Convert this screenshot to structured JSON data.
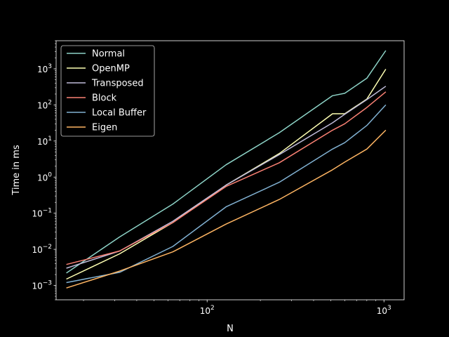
{
  "chart_data": {
    "type": "line",
    "xlabel": "N",
    "ylabel": "Time in ms",
    "xscale": "log",
    "yscale": "log",
    "xlim": [
      14,
      1300
    ],
    "ylim": [
      0.0004,
      6000
    ],
    "grid": false,
    "legend_position": "top-left",
    "x_ticks": [
      {
        "value": 100,
        "base": "10",
        "exp": "2"
      },
      {
        "value": 1000,
        "base": "10",
        "exp": "3"
      }
    ],
    "y_ticks": [
      {
        "value": 0.001,
        "base": "10",
        "exp": "−3"
      },
      {
        "value": 0.01,
        "base": "10",
        "exp": "−2"
      },
      {
        "value": 0.1,
        "base": "10",
        "exp": "−1"
      },
      {
        "value": 1,
        "base": "10",
        "exp": "0"
      },
      {
        "value": 10,
        "base": "10",
        "exp": "1"
      },
      {
        "value": 100,
        "base": "10",
        "exp": "2"
      },
      {
        "value": 1000,
        "base": "10",
        "exp": "3"
      }
    ],
    "series": [
      {
        "name": "Normal",
        "color": "#8dd3c7",
        "x": [
          16,
          32,
          64,
          128,
          256,
          512,
          600,
          800,
          1024
        ],
        "y": [
          0.0022,
          0.022,
          0.18,
          2.2,
          17,
          180,
          210,
          550,
          3200
        ]
      },
      {
        "name": "OpenMP",
        "color": "#feffb3",
        "x": [
          16,
          32,
          64,
          128,
          256,
          512,
          600,
          800,
          1024
        ],
        "y": [
          0.0015,
          0.0075,
          0.055,
          0.6,
          4.5,
          57,
          57,
          145,
          980
        ]
      },
      {
        "name": "Transposed",
        "color": "#bfbbd9",
        "x": [
          16,
          32,
          64,
          128,
          256,
          512,
          600,
          800,
          1024
        ],
        "y": [
          0.003,
          0.009,
          0.06,
          0.6,
          4.2,
          32,
          55,
          140,
          330
        ]
      },
      {
        "name": "Block",
        "color": "#fa8174",
        "x": [
          16,
          32,
          64,
          128,
          256,
          512,
          600,
          800,
          1024
        ],
        "y": [
          0.0038,
          0.009,
          0.055,
          0.55,
          2.5,
          20,
          30,
          85,
          230
        ]
      },
      {
        "name": "Local Buffer",
        "color": "#81b1d2",
        "x": [
          16,
          32,
          64,
          128,
          256,
          512,
          600,
          800,
          1024
        ],
        "y": [
          0.0012,
          0.0023,
          0.012,
          0.15,
          0.72,
          6,
          9,
          27,
          100
        ]
      },
      {
        "name": "Eigen",
        "color": "#fdb462",
        "x": [
          16,
          32,
          64,
          128,
          256,
          512,
          600,
          800,
          1024
        ],
        "y": [
          0.00085,
          0.0025,
          0.0085,
          0.05,
          0.24,
          1.6,
          2.6,
          6,
          20
        ]
      }
    ]
  }
}
